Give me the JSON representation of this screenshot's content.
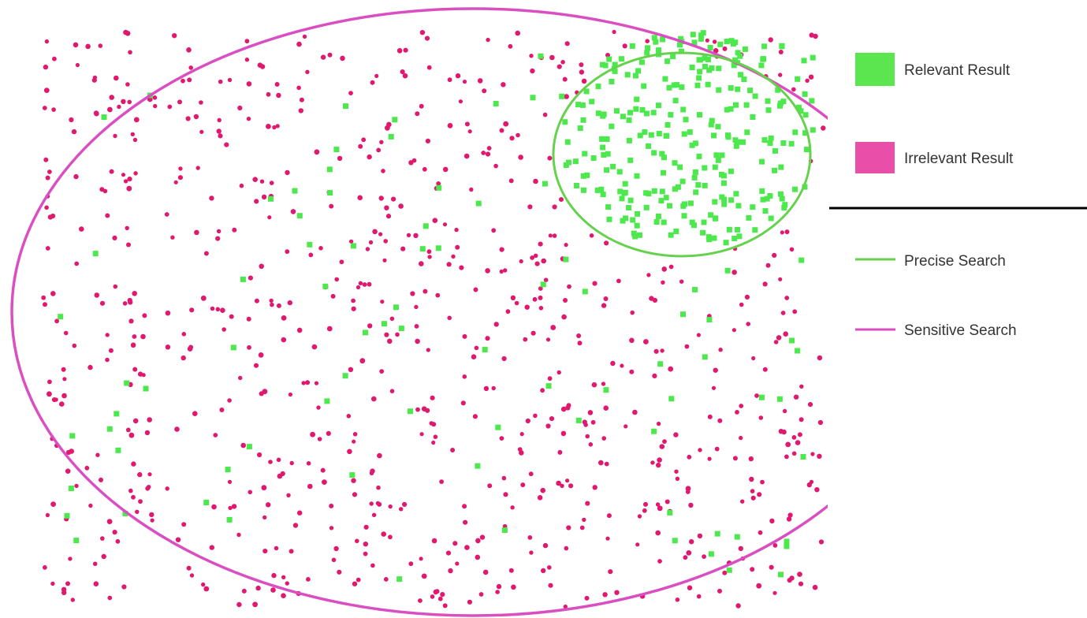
{
  "legend": {
    "relevant_label": "Relevant Result",
    "irrelevant_label": "Irrelevant Result",
    "precise_label": "Precise Search",
    "sensitive_label": "Sensitive Search"
  },
  "colors": {
    "relevant": "#4de84d",
    "irrelevant": "#e0186e",
    "precise_line": "#66d14d",
    "sensitive_line": "#d94fc2",
    "divider": "#000000"
  },
  "icons": {
    "relevant_swatch": "green-square-icon",
    "irrelevant_swatch": "pink-square-icon",
    "precise_line": "green-line-icon",
    "sensitive_line": "magenta-line-icon"
  }
}
